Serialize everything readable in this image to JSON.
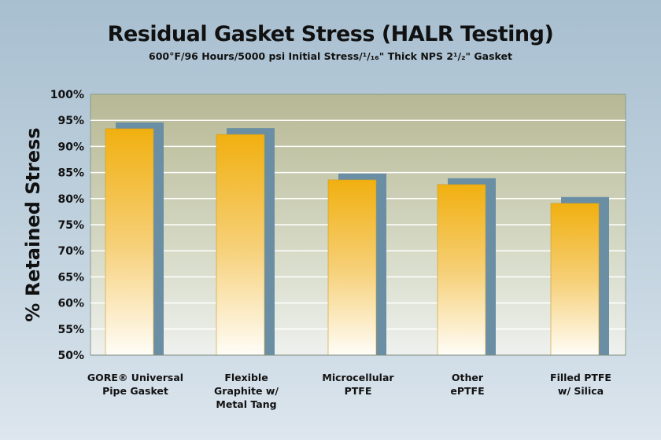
{
  "chart_data": {
    "type": "bar",
    "title": "Residual Gasket Stress (HALR Testing)",
    "subtitle": "600°F/96 Hours/5000 psi Initial Stress/¹/₁₆\" Thick NPS 2¹/₂\" Gasket",
    "ylabel": "% Retained Stress",
    "xlabel": "",
    "ylim": [
      50,
      100
    ],
    "yticks": [
      "50%",
      "55%",
      "60%",
      "65%",
      "70%",
      "75%",
      "80%",
      "85%",
      "90%",
      "95%",
      "100%"
    ],
    "categories": [
      [
        "GORE® Universal",
        "Pipe Gasket"
      ],
      [
        "Flexible",
        "Graphite w/",
        "Metal Tang"
      ],
      [
        "Microcellular",
        "PTFE"
      ],
      [
        "Other",
        "ePTFE"
      ],
      [
        "Filled PTFE",
        "w/ Silica"
      ]
    ],
    "values": [
      93.4,
      92.3,
      83.6,
      82.7,
      79.1
    ],
    "grid": true,
    "colors": {
      "bar": "#f2b215",
      "shadow": "#6a8ea3",
      "plot_bg": "#b9bb98"
    }
  }
}
